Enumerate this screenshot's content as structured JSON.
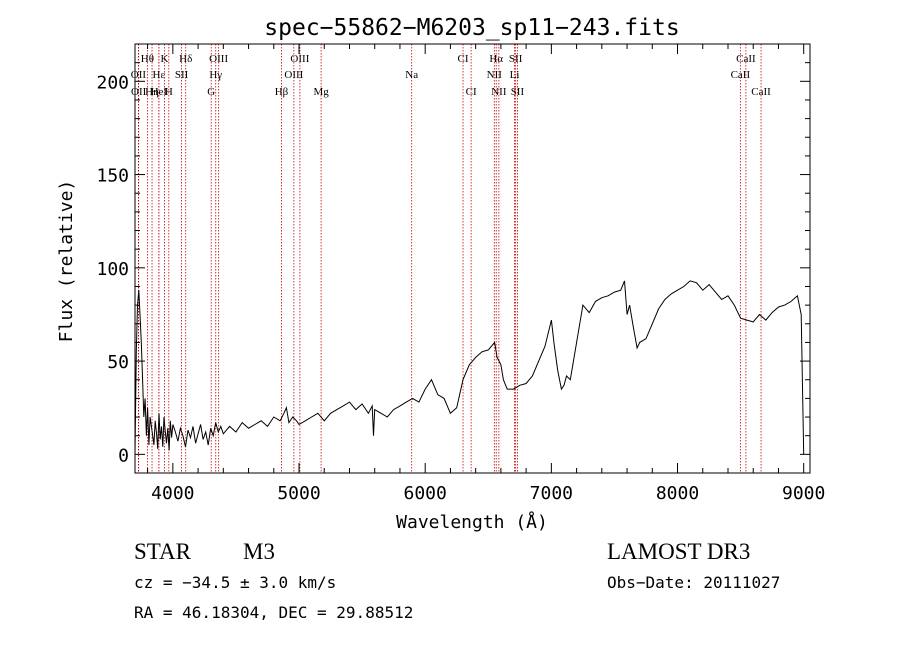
{
  "chart_data": {
    "type": "line",
    "title": "spec−55862−M6203_sp11−243.fits",
    "xlabel": "Wavelength (Å)",
    "ylabel": "Flux (relative)",
    "xlim": [
      3700,
      9050
    ],
    "ylim": [
      -10,
      220
    ],
    "x_ticks": [
      4000,
      5000,
      6000,
      7000,
      8000,
      9000
    ],
    "y_ticks": [
      0,
      50,
      100,
      150,
      200
    ],
    "x_tick_labels": [
      "4000",
      "5000",
      "6000",
      "7000",
      "8000",
      "9000"
    ],
    "y_tick_labels": [
      "0",
      "50",
      "100",
      "150",
      "200"
    ],
    "series": [
      {
        "name": "flux",
        "x": [
          3700,
          3710,
          3720,
          3730,
          3740,
          3750,
          3760,
          3770,
          3780,
          3790,
          3800,
          3810,
          3820,
          3830,
          3840,
          3850,
          3860,
          3870,
          3880,
          3890,
          3900,
          3910,
          3920,
          3930,
          3940,
          3950,
          3960,
          3970,
          3980,
          3990,
          4000,
          4020,
          4040,
          4060,
          4080,
          4100,
          4120,
          4140,
          4160,
          4180,
          4200,
          4220,
          4240,
          4260,
          4280,
          4300,
          4320,
          4340,
          4360,
          4380,
          4400,
          4450,
          4500,
          4550,
          4600,
          4650,
          4700,
          4750,
          4800,
          4850,
          4880,
          4900,
          4920,
          4950,
          4980,
          5000,
          5050,
          5100,
          5150,
          5200,
          5250,
          5300,
          5350,
          5400,
          5450,
          5500,
          5550,
          5580,
          5590,
          5600,
          5650,
          5700,
          5750,
          5800,
          5850,
          5900,
          5950,
          6000,
          6050,
          6100,
          6150,
          6200,
          6250,
          6300,
          6350,
          6400,
          6450,
          6500,
          6550,
          6570,
          6600,
          6620,
          6650,
          6700,
          6750,
          6800,
          6850,
          6900,
          6950,
          7000,
          7020,
          7050,
          7080,
          7100,
          7120,
          7150,
          7200,
          7250,
          7300,
          7350,
          7400,
          7450,
          7500,
          7550,
          7580,
          7600,
          7620,
          7650,
          7680,
          7700,
          7750,
          7800,
          7850,
          7900,
          7950,
          8000,
          8050,
          8100,
          8150,
          8200,
          8250,
          8300,
          8350,
          8400,
          8450,
          8500,
          8550,
          8600,
          8650,
          8700,
          8750,
          8800,
          8850,
          8900,
          8950,
          8980,
          9000
        ],
        "y": [
          0,
          55,
          80,
          88,
          75,
          60,
          40,
          20,
          30,
          10,
          25,
          5,
          20,
          15,
          10,
          5,
          18,
          12,
          3,
          22,
          8,
          15,
          4,
          20,
          12,
          6,
          14,
          2,
          18,
          9,
          16,
          12,
          7,
          14,
          10,
          4,
          13,
          9,
          15,
          6,
          11,
          16,
          8,
          12,
          5,
          14,
          10,
          17,
          12,
          15,
          11,
          15,
          12,
          17,
          14,
          16,
          18,
          15,
          20,
          18,
          22,
          25,
          17,
          20,
          18,
          16,
          18,
          20,
          22,
          18,
          22,
          24,
          26,
          28,
          24,
          27,
          22,
          26,
          10,
          24,
          22,
          20,
          24,
          26,
          28,
          30,
          28,
          35,
          40,
          32,
          30,
          22,
          25,
          40,
          48,
          52,
          55,
          56,
          60,
          52,
          48,
          40,
          35,
          35,
          37,
          38,
          42,
          50,
          58,
          72,
          60,
          45,
          35,
          37,
          42,
          40,
          60,
          80,
          76,
          82,
          84,
          85,
          87,
          88,
          93,
          75,
          80,
          68,
          57,
          60,
          62,
          70,
          78,
          83,
          86,
          88,
          90,
          93,
          92,
          88,
          91,
          87,
          83,
          85,
          80,
          73,
          72,
          71,
          75,
          72,
          76,
          79,
          80,
          82,
          85,
          75,
          0
        ]
      }
    ],
    "spectral_lines": [
      {
        "label": "Hθ",
        "wavelength": 3798
      },
      {
        "label": "K",
        "wavelength": 3934
      },
      {
        "label": "Hδ",
        "wavelength": 4102
      },
      {
        "label": "OIII",
        "wavelength": 4363
      },
      {
        "label": "OIII",
        "wavelength": 5007
      },
      {
        "label": "CI",
        "wavelength": 6300
      },
      {
        "label": "Hα",
        "wavelength": 6563
      },
      {
        "label": "SII",
        "wavelength": 6717
      },
      {
        "label": "CaII",
        "wavelength": 8542
      },
      {
        "label": "OII",
        "wavelength": 3727
      },
      {
        "label": "Hε",
        "wavelength": 3889
      },
      {
        "label": "SII",
        "wavelength": 4069
      },
      {
        "label": "Hγ",
        "wavelength": 4340
      },
      {
        "label": "OIII",
        "wavelength": 4959
      },
      {
        "label": "Na",
        "wavelength": 5893
      },
      {
        "label": "NII",
        "wavelength": 6548
      },
      {
        "label": "Li",
        "wavelength": 6708
      },
      {
        "label": "CaII",
        "wavelength": 8498
      },
      {
        "label": "OII",
        "wavelength": 3729
      },
      {
        "label": "Hη",
        "wavelength": 3835
      },
      {
        "label": "H",
        "wavelength": 3968
      },
      {
        "label": "G",
        "wavelength": 4304
      },
      {
        "label": "Hβ",
        "wavelength": 4861
      },
      {
        "label": "Mg",
        "wavelength": 5175
      },
      {
        "label": "CI",
        "wavelength": 6364
      },
      {
        "label": "NII",
        "wavelength": 6584
      },
      {
        "label": "SII",
        "wavelength": 6731
      },
      {
        "label": "CaII",
        "wavelength": 8662
      },
      {
        "label": "HeI",
        "wavelength": 3889
      }
    ]
  },
  "info": {
    "class_label": "STAR",
    "subclass": "M3",
    "survey": "LAMOST DR3",
    "cz": "cz = −34.5 ± 3.0 km/s",
    "obs_date": "Obs−Date: 20111027",
    "coords": "RA =  46.18304, DEC =  29.88512"
  }
}
